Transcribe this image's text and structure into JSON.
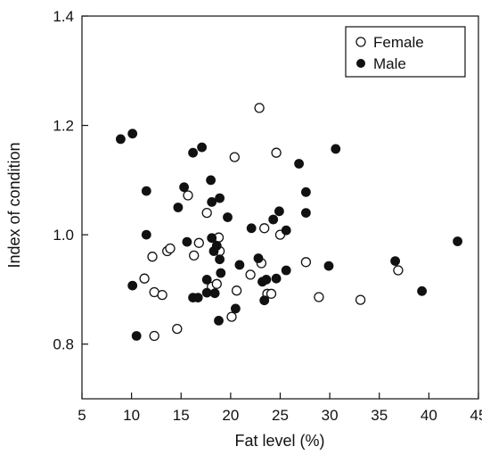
{
  "chart_data": {
    "type": "scatter",
    "title": "",
    "xlabel": "Fat level (%)",
    "ylabel": "Index of condition",
    "xlim": [
      5,
      45
    ],
    "ylim": [
      0.7,
      1.4
    ],
    "xticks": [
      5,
      10,
      15,
      20,
      25,
      30,
      35,
      40,
      45
    ],
    "yticks": [
      0.8,
      1.0,
      1.2,
      1.4
    ],
    "ytick_labels": [
      "0.8",
      "1.0",
      "1.2",
      "1.4"
    ],
    "grid": false,
    "legend_position": "top-right",
    "series": [
      {
        "name": "Female",
        "marker": "open-circle",
        "color": "#111111",
        "points": [
          [
            11.3,
            0.92
          ],
          [
            12.1,
            0.96
          ],
          [
            12.3,
            0.895
          ],
          [
            12.3,
            0.815
          ],
          [
            13.1,
            0.89
          ],
          [
            13.6,
            0.97
          ],
          [
            13.9,
            0.975
          ],
          [
            14.6,
            0.828
          ],
          [
            15.7,
            1.072
          ],
          [
            16.3,
            0.962
          ],
          [
            16.8,
            0.985
          ],
          [
            17.6,
            1.04
          ],
          [
            18.1,
            0.905
          ],
          [
            18.6,
            0.91
          ],
          [
            18.8,
            0.995
          ],
          [
            18.9,
            0.97
          ],
          [
            20.1,
            0.85
          ],
          [
            20.4,
            1.142
          ],
          [
            20.6,
            0.898
          ],
          [
            22.0,
            0.927
          ],
          [
            22.9,
            1.232
          ],
          [
            23.1,
            0.948
          ],
          [
            23.4,
            1.012
          ],
          [
            23.7,
            0.892
          ],
          [
            24.1,
            0.892
          ],
          [
            24.6,
            1.15
          ],
          [
            25.0,
            1.0
          ],
          [
            27.6,
            0.95
          ],
          [
            28.9,
            0.886
          ],
          [
            33.1,
            0.881
          ],
          [
            36.9,
            0.935
          ]
        ]
      },
      {
        "name": "Male",
        "marker": "filled-circle",
        "color": "#111111",
        "points": [
          [
            8.9,
            1.175
          ],
          [
            10.1,
            1.185
          ],
          [
            10.1,
            0.907
          ],
          [
            10.5,
            0.815
          ],
          [
            11.5,
            1.08
          ],
          [
            11.5,
            1.0
          ],
          [
            14.7,
            1.05
          ],
          [
            15.3,
            1.087
          ],
          [
            15.6,
            0.987
          ],
          [
            16.2,
            1.15
          ],
          [
            16.2,
            0.885
          ],
          [
            16.7,
            0.885
          ],
          [
            17.1,
            1.16
          ],
          [
            17.6,
            0.894
          ],
          [
            17.6,
            0.918
          ],
          [
            18.0,
            1.1
          ],
          [
            18.1,
            1.06
          ],
          [
            18.1,
            0.994
          ],
          [
            18.3,
            0.97
          ],
          [
            18.4,
            0.893
          ],
          [
            18.6,
            0.98
          ],
          [
            18.9,
            1.067
          ],
          [
            18.9,
            0.955
          ],
          [
            19.0,
            0.93
          ],
          [
            18.8,
            0.843
          ],
          [
            19.7,
            1.032
          ],
          [
            20.5,
            0.865
          ],
          [
            20.9,
            0.945
          ],
          [
            22.1,
            1.012
          ],
          [
            22.8,
            0.957
          ],
          [
            23.2,
            0.914
          ],
          [
            23.4,
            0.88
          ],
          [
            23.6,
            0.918
          ],
          [
            24.3,
            1.028
          ],
          [
            24.6,
            0.92
          ],
          [
            24.9,
            1.043
          ],
          [
            25.6,
            1.008
          ],
          [
            25.6,
            0.935
          ],
          [
            26.9,
            1.13
          ],
          [
            27.6,
            1.078
          ],
          [
            27.6,
            1.04
          ],
          [
            29.9,
            0.943
          ],
          [
            30.6,
            1.157
          ],
          [
            36.6,
            0.952
          ],
          [
            39.3,
            0.897
          ],
          [
            42.9,
            0.988
          ]
        ]
      }
    ]
  }
}
